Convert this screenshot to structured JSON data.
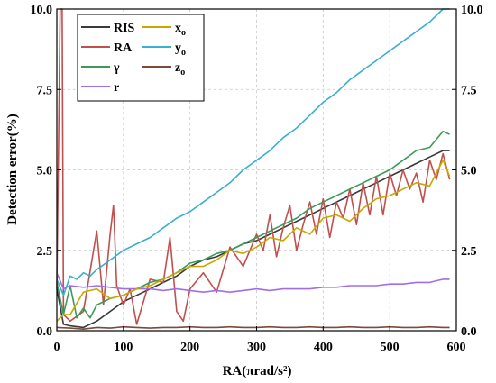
{
  "chart_data": {
    "type": "line",
    "xlabel": "RA(πrad/s²)",
    "ylabel": "Detection error(%)",
    "xlim": [
      0,
      600
    ],
    "ylim": [
      0,
      10
    ],
    "grid": true,
    "legend_position": "top-left",
    "x_ticks": [
      "0",
      "100",
      "200",
      "300",
      "400",
      "500",
      "600"
    ],
    "y_ticks": [
      "0.0",
      "2.5",
      "5.0",
      "7.5",
      "10.0"
    ],
    "series": [
      {
        "name": "RIS",
        "color": "#3a3a3a",
        "x": [
          0,
          10,
          20,
          40,
          60,
          80,
          100,
          120,
          140,
          160,
          180,
          200,
          220,
          240,
          260,
          280,
          300,
          320,
          340,
          360,
          380,
          400,
          420,
          440,
          460,
          480,
          500,
          520,
          540,
          560,
          580,
          590
        ],
        "y": [
          1.3,
          0.2,
          0.15,
          0.1,
          0.3,
          0.6,
          0.9,
          1.1,
          1.3,
          1.5,
          1.7,
          2.0,
          2.2,
          2.3,
          2.5,
          2.7,
          2.8,
          3.0,
          3.2,
          3.4,
          3.6,
          3.8,
          4.0,
          4.2,
          4.4,
          4.6,
          4.8,
          5.0,
          5.2,
          5.4,
          5.6,
          5.6
        ]
      },
      {
        "name": "RA",
        "color": "#c0504d",
        "x": [
          0,
          5,
          8,
          10,
          20,
          40,
          60,
          70,
          80,
          85,
          90,
          100,
          110,
          120,
          140,
          160,
          170,
          180,
          190,
          200,
          220,
          240,
          260,
          280,
          300,
          310,
          320,
          330,
          340,
          350,
          360,
          370,
          380,
          390,
          400,
          410,
          420,
          430,
          440,
          450,
          460,
          470,
          480,
          490,
          500,
          510,
          520,
          530,
          540,
          550,
          560,
          570,
          580,
          590
        ],
        "y": [
          1.3,
          10.0,
          10.0,
          0.5,
          0.3,
          0.6,
          3.1,
          0.8,
          3.0,
          3.9,
          1.4,
          0.8,
          1.3,
          0.2,
          1.6,
          1.5,
          2.9,
          0.6,
          0.3,
          1.3,
          1.8,
          1.2,
          2.6,
          2.0,
          3.0,
          2.5,
          3.6,
          2.3,
          3.2,
          3.9,
          2.5,
          3.3,
          4.0,
          3.0,
          4.1,
          2.9,
          4.0,
          3.5,
          4.4,
          3.3,
          4.6,
          3.6,
          4.8,
          3.6,
          4.9,
          4.2,
          5.0,
          4.4,
          4.9,
          4.0,
          5.3,
          4.7,
          5.5,
          4.7
        ]
      },
      {
        "name": "γ",
        "color": "#3e9a5a",
        "x": [
          0,
          10,
          20,
          30,
          40,
          50,
          60,
          80,
          100,
          120,
          140,
          160,
          180,
          200,
          220,
          240,
          260,
          280,
          300,
          320,
          340,
          360,
          380,
          400,
          420,
          440,
          460,
          480,
          500,
          520,
          540,
          560,
          580,
          590
        ],
        "y": [
          1.5,
          0.5,
          1.4,
          0.4,
          0.7,
          0.4,
          0.8,
          1.0,
          1.1,
          1.3,
          1.5,
          1.6,
          1.8,
          2.1,
          2.2,
          2.4,
          2.5,
          2.7,
          2.9,
          3.1,
          3.3,
          3.5,
          3.8,
          4.0,
          4.2,
          4.4,
          4.6,
          4.8,
          5.0,
          5.3,
          5.6,
          5.7,
          6.2,
          6.1
        ]
      },
      {
        "name": "r",
        "color": "#a16ee6",
        "x": [
          0,
          10,
          20,
          40,
          60,
          80,
          100,
          120,
          140,
          160,
          180,
          200,
          220,
          240,
          260,
          280,
          300,
          320,
          340,
          360,
          380,
          400,
          420,
          440,
          460,
          480,
          500,
          520,
          540,
          560,
          580,
          590
        ],
        "y": [
          1.8,
          1.3,
          1.4,
          1.35,
          1.4,
          1.35,
          1.3,
          1.3,
          1.3,
          1.25,
          1.3,
          1.25,
          1.2,
          1.25,
          1.2,
          1.25,
          1.3,
          1.25,
          1.3,
          1.3,
          1.3,
          1.35,
          1.35,
          1.4,
          1.4,
          1.4,
          1.45,
          1.45,
          1.5,
          1.5,
          1.6,
          1.6
        ]
      },
      {
        "name": "xo",
        "color": "#c8a800",
        "x": [
          0,
          10,
          20,
          40,
          60,
          80,
          100,
          120,
          140,
          160,
          180,
          200,
          220,
          240,
          260,
          280,
          300,
          320,
          340,
          360,
          380,
          400,
          420,
          440,
          460,
          480,
          500,
          520,
          540,
          560,
          580,
          590
        ],
        "y": [
          0.3,
          0.5,
          0.5,
          1.2,
          1.3,
          1.0,
          1.1,
          1.3,
          1.4,
          1.6,
          1.8,
          2.0,
          2.0,
          2.2,
          2.5,
          2.4,
          2.6,
          2.9,
          2.8,
          3.2,
          3.0,
          3.5,
          3.6,
          3.4,
          3.8,
          4.1,
          4.2,
          4.4,
          4.6,
          4.5,
          5.3,
          4.8
        ]
      },
      {
        "name": "yo",
        "color": "#3aafd0",
        "x": [
          0,
          10,
          20,
          30,
          40,
          50,
          60,
          80,
          100,
          120,
          140,
          160,
          180,
          200,
          220,
          240,
          260,
          280,
          300,
          320,
          340,
          360,
          380,
          400,
          420,
          440,
          460,
          480,
          500,
          520,
          540,
          560,
          580,
          590
        ],
        "y": [
          1.6,
          1.1,
          1.7,
          1.6,
          1.8,
          1.7,
          1.9,
          2.2,
          2.5,
          2.7,
          2.9,
          3.2,
          3.5,
          3.7,
          4.0,
          4.3,
          4.6,
          5.0,
          5.3,
          5.6,
          6.0,
          6.3,
          6.7,
          7.1,
          7.4,
          7.8,
          8.1,
          8.4,
          8.7,
          9.0,
          9.3,
          9.6,
          10.0,
          10.0
        ]
      },
      {
        "name": "zo",
        "color": "#7a4a3a",
        "x": [
          0,
          20,
          40,
          60,
          80,
          100,
          120,
          140,
          160,
          180,
          200,
          220,
          240,
          260,
          280,
          300,
          320,
          340,
          360,
          380,
          400,
          420,
          440,
          460,
          480,
          500,
          520,
          540,
          560,
          580,
          590
        ],
        "y": [
          0.1,
          0.08,
          0.05,
          0.1,
          0.08,
          0.12,
          0.1,
          0.08,
          0.1,
          0.1,
          0.12,
          0.1,
          0.1,
          0.12,
          0.1,
          0.1,
          0.12,
          0.1,
          0.1,
          0.12,
          0.1,
          0.1,
          0.12,
          0.1,
          0.1,
          0.12,
          0.1,
          0.1,
          0.12,
          0.1,
          0.1
        ]
      }
    ]
  },
  "legend": {
    "items": [
      {
        "label": "RIS",
        "sub": "",
        "color": "#3a3a3a"
      },
      {
        "label": "RA",
        "sub": "",
        "color": "#c0504d"
      },
      {
        "label": "γ",
        "sub": "",
        "color": "#3e9a5a"
      },
      {
        "label": "r",
        "sub": "",
        "color": "#a16ee6"
      },
      {
        "label": "x",
        "sub": "o",
        "color": "#c8a800"
      },
      {
        "label": "y",
        "sub": "o",
        "color": "#3aafd0"
      },
      {
        "label": "z",
        "sub": "o",
        "color": "#7a4a3a"
      }
    ]
  }
}
